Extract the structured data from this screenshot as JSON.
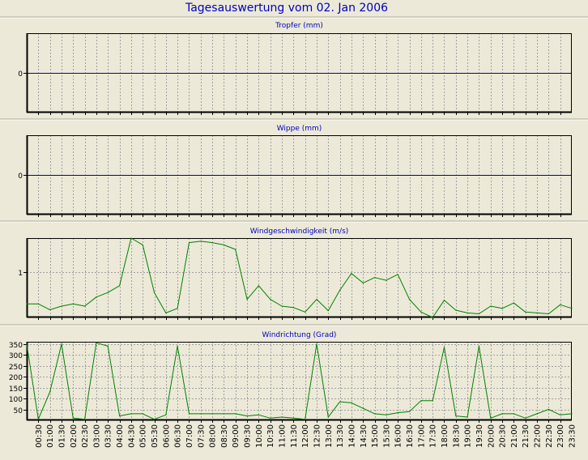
{
  "page_title": "Tagesauswertung vom 02. Jan 2006",
  "colors": {
    "background": "#ece9d8",
    "title": "#0000c0",
    "zero_line": "#0000b0",
    "series_line": "#008000",
    "grid": "#a0a0a0",
    "axis": "#000000"
  },
  "x_tick_labels": [
    "00:30",
    "01:00",
    "01:30",
    "02:00",
    "02:30",
    "03:00",
    "03:30",
    "04:00",
    "04:30",
    "05:00",
    "05:30",
    "06:00",
    "06:30",
    "07:00",
    "07:30",
    "08:00",
    "08:30",
    "09:00",
    "09:30",
    "10:00",
    "10:30",
    "11:00",
    "11:30",
    "12:00",
    "12:30",
    "13:00",
    "13:30",
    "14:00",
    "14:30",
    "15:00",
    "15:30",
    "16:00",
    "16:30",
    "17:00",
    "17:30",
    "18:00",
    "18:30",
    "19:00",
    "19:30",
    "20:00",
    "20:30",
    "21:00",
    "21:30",
    "22:00",
    "22:30",
    "23:00",
    "23:30"
  ],
  "chart_data": [
    {
      "type": "line",
      "title": "Tropfer (mm)",
      "ylim": [
        -1,
        1
      ],
      "yticks": [
        0
      ],
      "ytick_labels": [
        "0"
      ],
      "grid": "vertical dashed",
      "series": [
        {
          "values": [
            0,
            0,
            0,
            0,
            0,
            0,
            0,
            0,
            0,
            0,
            0,
            0,
            0,
            0,
            0,
            0,
            0,
            0,
            0,
            0,
            0,
            0,
            0,
            0,
            0,
            0,
            0,
            0,
            0,
            0,
            0,
            0,
            0,
            0,
            0,
            0,
            0,
            0,
            0,
            0,
            0,
            0,
            0,
            0,
            0,
            0,
            0,
            0
          ]
        }
      ]
    },
    {
      "type": "line",
      "title": "Wippe (mm)",
      "ylim": [
        -1,
        1
      ],
      "yticks": [
        0
      ],
      "ytick_labels": [
        "0"
      ],
      "grid": "vertical dashed",
      "series": [
        {
          "values": [
            0,
            0,
            0,
            0,
            0,
            0,
            0,
            0,
            0,
            0,
            0,
            0,
            0,
            0,
            0,
            0,
            0,
            0,
            0,
            0,
            0,
            0,
            0,
            0,
            0,
            0,
            0,
            0,
            0,
            0,
            0,
            0,
            0,
            0,
            0,
            0,
            0,
            0,
            0,
            0,
            0,
            0,
            0,
            0,
            0,
            0,
            0,
            0
          ]
        }
      ]
    },
    {
      "type": "line",
      "title": "Windgeschwindigkeit (m/s)",
      "ylim": [
        0,
        1.75
      ],
      "yticks": [
        1
      ],
      "ytick_labels": [
        "1"
      ],
      "grid": "vertical and horizontal dashed",
      "series": [
        {
          "values": [
            0.3,
            0.3,
            0.17,
            0.25,
            0.3,
            0.25,
            0.45,
            0.55,
            0.7,
            1.75,
            1.6,
            0.55,
            0.1,
            0.2,
            1.65,
            1.68,
            1.65,
            1.6,
            1.5,
            0.4,
            0.7,
            0.4,
            0.25,
            0.22,
            0.12,
            0.4,
            0.15,
            0.6,
            0.97,
            0.76,
            0.88,
            0.82,
            0.95,
            0.4,
            0.12,
            0.0,
            0.38,
            0.16,
            0.1,
            0.08,
            0.25,
            0.2,
            0.32,
            0.12,
            0.1,
            0.08,
            0.28,
            0.2
          ]
        }
      ]
    },
    {
      "type": "line",
      "title": "Windrichtung (Grad)",
      "ylim": [
        0,
        360
      ],
      "yticks": [
        50,
        100,
        150,
        200,
        250,
        300,
        350
      ],
      "ytick_labels": [
        "50",
        "100",
        "150",
        "200",
        "250",
        "300",
        "350"
      ],
      "grid": "vertical and horizontal dashed",
      "series": [
        {
          "values": [
            350,
            5,
            130,
            350,
            10,
            5,
            355,
            340,
            20,
            30,
            30,
            5,
            25,
            340,
            30,
            30,
            30,
            30,
            30,
            20,
            25,
            10,
            15,
            10,
            5,
            350,
            15,
            85,
            80,
            55,
            30,
            25,
            35,
            40,
            90,
            90,
            335,
            20,
            15,
            340,
            10,
            30,
            30,
            10,
            30,
            50,
            25,
            30
          ]
        }
      ]
    }
  ]
}
